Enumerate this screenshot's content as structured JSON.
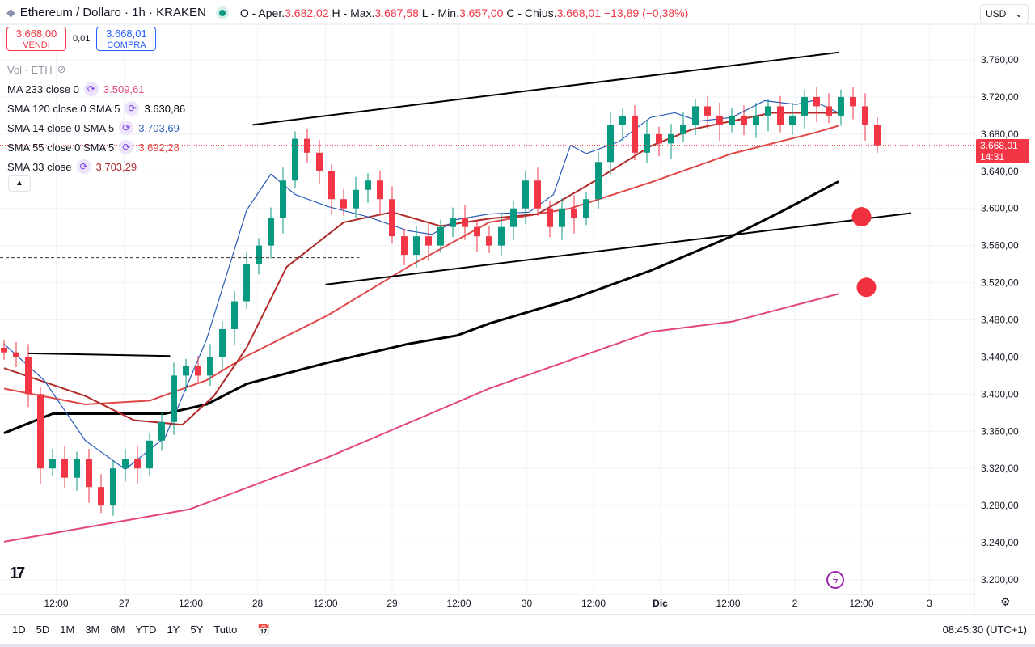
{
  "header": {
    "symbol_title": "Ethereum / Dollaro · 1h · KRAKEN",
    "ohlc": [
      {
        "label": "O - Aper.",
        "value": "3.682,02"
      },
      {
        "label": "H - Max.",
        "value": "3.687,58"
      },
      {
        "label": "L - Min.",
        "value": "3.657,00"
      },
      {
        "label": "C - Chius.",
        "value": "3.668,01"
      }
    ],
    "change": "−13,89 (−0,38%)"
  },
  "trade": {
    "sell_price": "3.668,00",
    "sell_label": "VENDI",
    "spread": "0,01",
    "buy_price": "3.668,01",
    "buy_label": "COMPRA"
  },
  "legend": {
    "volume": "Vol · ETH",
    "indicators": [
      {
        "label": "MA 233 close 0",
        "value": "3.509,61",
        "color": "#e2457f"
      },
      {
        "label": "SMA 120 close 0 SMA 5",
        "value": "3.630,86",
        "color": "#000000"
      },
      {
        "label": "SMA 14 close 0 SMA 5",
        "value": "3.703,69",
        "color": "#2a5bb8"
      },
      {
        "label": "SMA 55 close 0 SMA 5",
        "value": "3.692,28",
        "color": "#e04848"
      },
      {
        "label": "SMA 33 close",
        "value": "3.703,29",
        "color": "#b02a2a"
      }
    ]
  },
  "currency": "USD",
  "current_price": {
    "value": "3.668,01",
    "countdown": "14:31"
  },
  "bottom": {
    "ranges": [
      "1D",
      "5D",
      "1M",
      "3M",
      "6M",
      "YTD",
      "1Y",
      "5Y",
      "Tutto"
    ],
    "clock": "08:45:30 (UTC+1)"
  },
  "colors": {
    "up": "#089981",
    "down": "#f23645",
    "grid": "#f0f3fa"
  },
  "chart_data": {
    "type": "candlestick",
    "title": "Ethereum / Dollaro · 1h · KRAKEN",
    "ylim": [
      3200,
      3760
    ],
    "y_ticks": [
      "3.200,00",
      "3.240,00",
      "3.280,00",
      "3.320,00",
      "3.360,00",
      "3.400,00",
      "3.440,00",
      "3.480,00",
      "3.520,00",
      "3.560,00",
      "3.600,00",
      "3.640,00",
      "3.680,00",
      "3.720,00",
      "3.760,00"
    ],
    "x_ticks": [
      {
        "label": "12:00",
        "bar": 4.3
      },
      {
        "label": "27",
        "bar": 9.9
      },
      {
        "label": "12:00",
        "bar": 15.4
      },
      {
        "label": "28",
        "bar": 20.9
      },
      {
        "label": "12:00",
        "bar": 26.5
      },
      {
        "label": "29",
        "bar": 32.0
      },
      {
        "label": "12:00",
        "bar": 37.5
      },
      {
        "label": "30",
        "bar": 43.1
      },
      {
        "label": "12:00",
        "bar": 48.6
      },
      {
        "label": "Dic",
        "bar": 54.1
      },
      {
        "label": "12:00",
        "bar": 59.7
      },
      {
        "label": "2",
        "bar": 65.2
      },
      {
        "label": "12:00",
        "bar": 70.7
      },
      {
        "label": "3",
        "bar": 76.3
      }
    ],
    "closes": [
      3445,
      3440,
      3400,
      3320,
      3330,
      3310,
      3330,
      3300,
      3280,
      3320,
      3330,
      3320,
      3350,
      3370,
      3420,
      3430,
      3420,
      3440,
      3470,
      3500,
      3540,
      3560,
      3590,
      3630,
      3675,
      3660,
      3640,
      3610,
      3600,
      3620,
      3630,
      3610,
      3570,
      3550,
      3570,
      3560,
      3580,
      3590,
      3580,
      3570,
      3560,
      3580,
      3600,
      3630,
      3600,
      3580,
      3600,
      3590,
      3610,
      3650,
      3690,
      3700,
      3660,
      3680,
      3670,
      3680,
      3690,
      3710,
      3700,
      3690,
      3700,
      3690,
      3700,
      3710,
      3690,
      3700,
      3720,
      3710,
      3700,
      3720,
      3710,
      3690,
      3668
    ],
    "series": [
      {
        "name": "MA 233",
        "color": "#e2457f",
        "points": [
          [
            0,
            3241
          ],
          [
            15.3,
            3276
          ],
          [
            26.7,
            3332
          ],
          [
            40,
            3406
          ],
          [
            53.3,
            3467
          ],
          [
            60,
            3478
          ],
          [
            68.8,
            3508
          ]
        ]
      },
      {
        "name": "SMA 120",
        "color": "#000000",
        "points": [
          [
            0,
            3358
          ],
          [
            4,
            3379
          ],
          [
            13.3,
            3379
          ],
          [
            16.7,
            3389
          ],
          [
            20,
            3411
          ],
          [
            26.7,
            3434
          ],
          [
            33.3,
            3454
          ],
          [
            37.3,
            3463
          ],
          [
            40,
            3476
          ],
          [
            46.7,
            3502
          ],
          [
            53.3,
            3533
          ],
          [
            60,
            3570
          ],
          [
            64,
            3596
          ],
          [
            68.8,
            3629
          ]
        ]
      },
      {
        "name": "SMA 55",
        "color": "#e04848",
        "points": [
          [
            0,
            3406
          ],
          [
            6.7,
            3389
          ],
          [
            12,
            3393
          ],
          [
            16.7,
            3415
          ],
          [
            20,
            3441
          ],
          [
            26.7,
            3485
          ],
          [
            33.3,
            3537
          ],
          [
            40,
            3585
          ],
          [
            46.7,
            3600
          ],
          [
            53.3,
            3628
          ],
          [
            60,
            3659
          ],
          [
            66.7,
            3681
          ],
          [
            68.8,
            3689
          ]
        ]
      },
      {
        "name": "SMA 33",
        "color": "#b02a2a",
        "points": [
          [
            0,
            3428
          ],
          [
            6.7,
            3398
          ],
          [
            10.7,
            3372
          ],
          [
            14.7,
            3367
          ],
          [
            17.3,
            3398
          ],
          [
            20,
            3450
          ],
          [
            23.3,
            3537
          ],
          [
            28,
            3585
          ],
          [
            32,
            3596
          ],
          [
            36,
            3581
          ],
          [
            40,
            3589
          ],
          [
            44,
            3594
          ],
          [
            48,
            3624
          ],
          [
            53.3,
            3667
          ],
          [
            56.7,
            3685
          ],
          [
            60,
            3694
          ],
          [
            63.3,
            3703
          ],
          [
            66.7,
            3703
          ],
          [
            68.8,
            3703
          ]
        ]
      },
      {
        "name": "SMA 14",
        "color": "#2a5bb8",
        "points": [
          [
            0,
            3454
          ],
          [
            3.3,
            3415
          ],
          [
            6.7,
            3350
          ],
          [
            10,
            3319
          ],
          [
            13.3,
            3354
          ],
          [
            16.7,
            3459
          ],
          [
            20,
            3598
          ],
          [
            22,
            3637
          ],
          [
            24,
            3615
          ],
          [
            26.7,
            3602
          ],
          [
            30,
            3591
          ],
          [
            33.3,
            3576
          ],
          [
            35.3,
            3572
          ],
          [
            37.3,
            3588
          ],
          [
            40,
            3594
          ],
          [
            43.3,
            3596
          ],
          [
            45.3,
            3615
          ],
          [
            46.7,
            3668
          ],
          [
            48,
            3659
          ],
          [
            50.7,
            3672
          ],
          [
            53.3,
            3698
          ],
          [
            55.3,
            3703
          ],
          [
            57.3,
            3694
          ],
          [
            60,
            3698
          ],
          [
            62.7,
            3716
          ],
          [
            65.3,
            3712
          ],
          [
            66.7,
            3716
          ],
          [
            68.8,
            3703
          ]
        ]
      }
    ],
    "drawings": {
      "trendlines": [
        {
          "from": [
            20.5,
            3690
          ],
          "to": [
            68.8,
            3768
          ]
        },
        {
          "from": [
            26.5,
            3518
          ],
          "to": [
            74.8,
            3595
          ]
        },
        {
          "from": [
            2,
            3444
          ],
          "to": [
            13.7,
            3441
          ]
        }
      ],
      "dashed_level": {
        "price": 3547,
        "to_bar": 29.3
      },
      "markers": [
        {
          "bar": 70.7,
          "price": 3591
        },
        {
          "bar": 71.1,
          "price": 3515
        }
      ]
    }
  }
}
